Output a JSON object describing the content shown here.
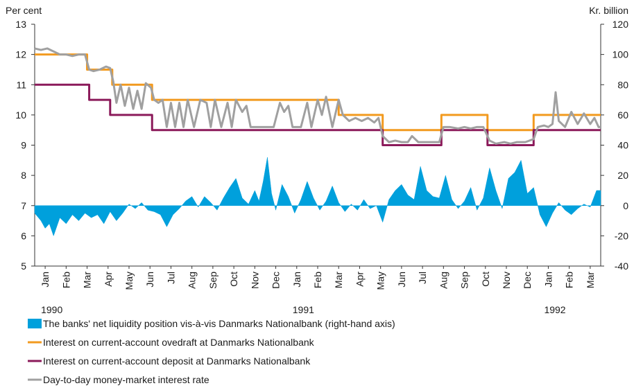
{
  "chart_data": {
    "type": "line",
    "y_label": "Per cent",
    "y2_label": "Kr. billion",
    "xlim": [
      0,
      27
    ],
    "xticks": [
      {
        "value": 0.5,
        "label": "Jan"
      },
      {
        "value": 1.5,
        "label": "Feb"
      },
      {
        "value": 2.5,
        "label": "Mar"
      },
      {
        "value": 3.5,
        "label": "Apr"
      },
      {
        "value": 4.5,
        "label": "May"
      },
      {
        "value": 5.5,
        "label": "Jun"
      },
      {
        "value": 6.5,
        "label": "Jul"
      },
      {
        "value": 7.5,
        "label": "Aug"
      },
      {
        "value": 8.5,
        "label": "Sep"
      },
      {
        "value": 9.5,
        "label": "Oct"
      },
      {
        "value": 10.5,
        "label": "Nov"
      },
      {
        "value": 11.5,
        "label": "Dec"
      },
      {
        "value": 12.5,
        "label": "Jan"
      },
      {
        "value": 13.5,
        "label": "Feb"
      },
      {
        "value": 14.5,
        "label": "Mar"
      },
      {
        "value": 15.5,
        "label": "Apr"
      },
      {
        "value": 16.5,
        "label": "May"
      },
      {
        "value": 17.5,
        "label": "Jun"
      },
      {
        "value": 18.5,
        "label": "Jul"
      },
      {
        "value": 19.5,
        "label": "Aug"
      },
      {
        "value": 20.5,
        "label": "Sep"
      },
      {
        "value": 21.5,
        "label": "Oct"
      },
      {
        "value": 22.5,
        "label": "Nov"
      },
      {
        "value": 23.5,
        "label": "Dec"
      },
      {
        "value": 24.5,
        "label": "Jan"
      },
      {
        "value": 25.5,
        "label": "Feb"
      },
      {
        "value": 26.5,
        "label": "Mar"
      }
    ],
    "year_ticks": [
      {
        "value": 0.5,
        "label": "1990"
      },
      {
        "value": 12.5,
        "label": "1991"
      },
      {
        "value": 24.5,
        "label": "1992"
      }
    ],
    "ylim": [
      5,
      13
    ],
    "yticks": [
      5,
      6,
      7,
      8,
      9,
      10,
      11,
      12,
      13
    ],
    "y2lim": [
      -40,
      120
    ],
    "y2ticks": [
      -40,
      -20,
      0,
      20,
      40,
      60,
      80,
      100,
      120
    ],
    "series": [
      {
        "name": "The banks' net liquidity position vis-à-vis Danmarks Nationalbank (right-hand axis)",
        "type": "area",
        "axis": "y2",
        "color": "#00a0dc",
        "x": [
          0,
          0.3,
          0.5,
          0.7,
          0.9,
          1.2,
          1.5,
          1.8,
          2.1,
          2.4,
          2.7,
          3.0,
          3.3,
          3.6,
          3.9,
          4.2,
          4.5,
          4.8,
          5.1,
          5.4,
          5.7,
          6.0,
          6.3,
          6.6,
          6.9,
          7.2,
          7.5,
          7.8,
          8.1,
          8.4,
          8.7,
          9.0,
          9.3,
          9.6,
          9.9,
          10.2,
          10.5,
          10.7,
          10.9,
          11.1,
          11.3,
          11.5,
          11.8,
          12.1,
          12.4,
          12.7,
          13.0,
          13.3,
          13.6,
          13.9,
          14.2,
          14.5,
          14.8,
          15.1,
          15.4,
          15.7,
          16.0,
          16.3,
          16.6,
          16.9,
          17.2,
          17.5,
          17.8,
          18.1,
          18.4,
          18.7,
          19.0,
          19.3,
          19.6,
          19.9,
          20.2,
          20.5,
          20.8,
          21.1,
          21.4,
          21.7,
          22.0,
          22.3,
          22.6,
          22.9,
          23.2,
          23.5,
          23.8,
          24.1,
          24.4,
          24.7,
          25.0,
          25.3,
          25.6,
          25.9,
          26.2,
          26.5,
          26.8,
          27
        ],
        "values": [
          -5,
          -10,
          -15,
          -12,
          -20,
          -8,
          -12,
          -6,
          -10,
          -5,
          -8,
          -6,
          -12,
          -4,
          -10,
          -5,
          1,
          -2,
          2,
          -3,
          -4,
          -6,
          -14,
          -6,
          -2,
          3,
          6,
          -1,
          6,
          2,
          -3,
          5,
          12,
          18,
          5,
          1,
          10,
          3,
          16,
          32,
          8,
          -3,
          14,
          6,
          -5,
          4,
          16,
          5,
          -3,
          3,
          13,
          2,
          -4,
          1,
          -3,
          4,
          -2,
          0,
          -11,
          4,
          10,
          14,
          7,
          4,
          26,
          10,
          6,
          5,
          20,
          4,
          -2,
          3,
          12,
          -3,
          5,
          25,
          10,
          -2,
          18,
          22,
          30,
          8,
          12,
          -6,
          -14,
          -5,
          2,
          -3,
          -6,
          -2,
          1,
          -1,
          10,
          10
        ]
      },
      {
        "name": "Interest on current-account ovedraft at Danmarks Nationalbank",
        "type": "line",
        "color": "#f29a1f",
        "x": [
          0,
          2.5,
          2.5,
          3.7,
          3.7,
          5.6,
          5.6,
          14.5,
          14.5,
          16.6,
          16.6,
          19.4,
          19.4,
          21.6,
          21.6,
          23.8,
          23.8,
          27
        ],
        "values": [
          12,
          12,
          11.5,
          11.5,
          11,
          11,
          10.5,
          10.5,
          10,
          10,
          9.5,
          9.5,
          10,
          10,
          9.5,
          9.5,
          10,
          10
        ]
      },
      {
        "name": "Interest on current-account deposit at Danmarks Nationalbank",
        "type": "line",
        "color": "#8b1a5a",
        "x": [
          0,
          2.6,
          2.6,
          3.6,
          3.6,
          5.6,
          5.6,
          16.6,
          16.6,
          19.4,
          19.4,
          21.6,
          21.6,
          23.8,
          23.8,
          27
        ],
        "values": [
          11,
          11,
          10.5,
          10.5,
          10,
          10,
          9.5,
          9.5,
          9,
          9,
          9.5,
          9.5,
          9,
          9,
          9.5,
          9.5
        ]
      },
      {
        "name": "Day-to-day money-market interest rate",
        "type": "line",
        "color": "#a0a0a0",
        "x": [
          0,
          0.3,
          0.6,
          0.9,
          1.2,
          1.5,
          1.8,
          2.1,
          2.4,
          2.6,
          2.8,
          3.1,
          3.4,
          3.6,
          3.75,
          3.9,
          4.1,
          4.3,
          4.5,
          4.7,
          4.9,
          5.1,
          5.3,
          5.55,
          5.7,
          5.9,
          6.1,
          6.3,
          6.5,
          6.7,
          6.9,
          7.1,
          7.3,
          7.6,
          7.9,
          8.2,
          8.4,
          8.6,
          8.9,
          9.2,
          9.4,
          9.6,
          9.9,
          10.1,
          10.3,
          10.8,
          11.1,
          11.4,
          11.7,
          11.9,
          12.1,
          12.3,
          12.7,
          13.0,
          13.2,
          13.5,
          13.7,
          13.9,
          14.2,
          14.5,
          14.7,
          15.0,
          15.3,
          15.6,
          15.9,
          16.2,
          16.4,
          16.6,
          16.9,
          17.2,
          17.5,
          17.8,
          18.0,
          18.3,
          18.6,
          19.0,
          19.3,
          19.5,
          19.8,
          20.2,
          20.5,
          20.8,
          21.1,
          21.4,
          21.7,
          22.0,
          22.4,
          22.7,
          23.0,
          23.4,
          23.8,
          24.0,
          24.3,
          24.5,
          24.7,
          24.85,
          25.0,
          25.3,
          25.6,
          25.9,
          26.2,
          26.5,
          26.7,
          26.9,
          27
        ],
        "values": [
          12.2,
          12.15,
          12.2,
          12.1,
          12,
          12,
          11.95,
          12,
          12,
          11.5,
          11.45,
          11.5,
          11.6,
          11.55,
          11.1,
          10.4,
          11,
          10.3,
          10.9,
          10.2,
          10.8,
          10.2,
          11.05,
          10.9,
          10.5,
          10.4,
          10.5,
          9.6,
          10.4,
          9.6,
          10.4,
          9.6,
          10.5,
          9.6,
          10.5,
          10.4,
          9.6,
          10.5,
          9.6,
          10.4,
          9.6,
          10.5,
          10.1,
          10.3,
          9.6,
          9.6,
          9.6,
          9.6,
          10.4,
          10.1,
          10.3,
          9.6,
          9.6,
          10.4,
          9.6,
          10.5,
          10,
          10.6,
          9.6,
          10.5,
          10,
          9.8,
          9.9,
          9.8,
          9.9,
          9.75,
          9.9,
          9.3,
          9.1,
          9.15,
          9.1,
          9.1,
          9.3,
          9.1,
          9.1,
          9.1,
          9.1,
          9.6,
          9.6,
          9.55,
          9.6,
          9.55,
          9.6,
          9.6,
          9.15,
          9.05,
          9.1,
          9.05,
          9.1,
          9.1,
          9.2,
          9.6,
          9.65,
          9.6,
          9.7,
          10.75,
          9.8,
          9.6,
          10.1,
          9.7,
          10.05,
          9.7,
          9.9,
          9.6,
          9.6
        ]
      }
    ]
  }
}
